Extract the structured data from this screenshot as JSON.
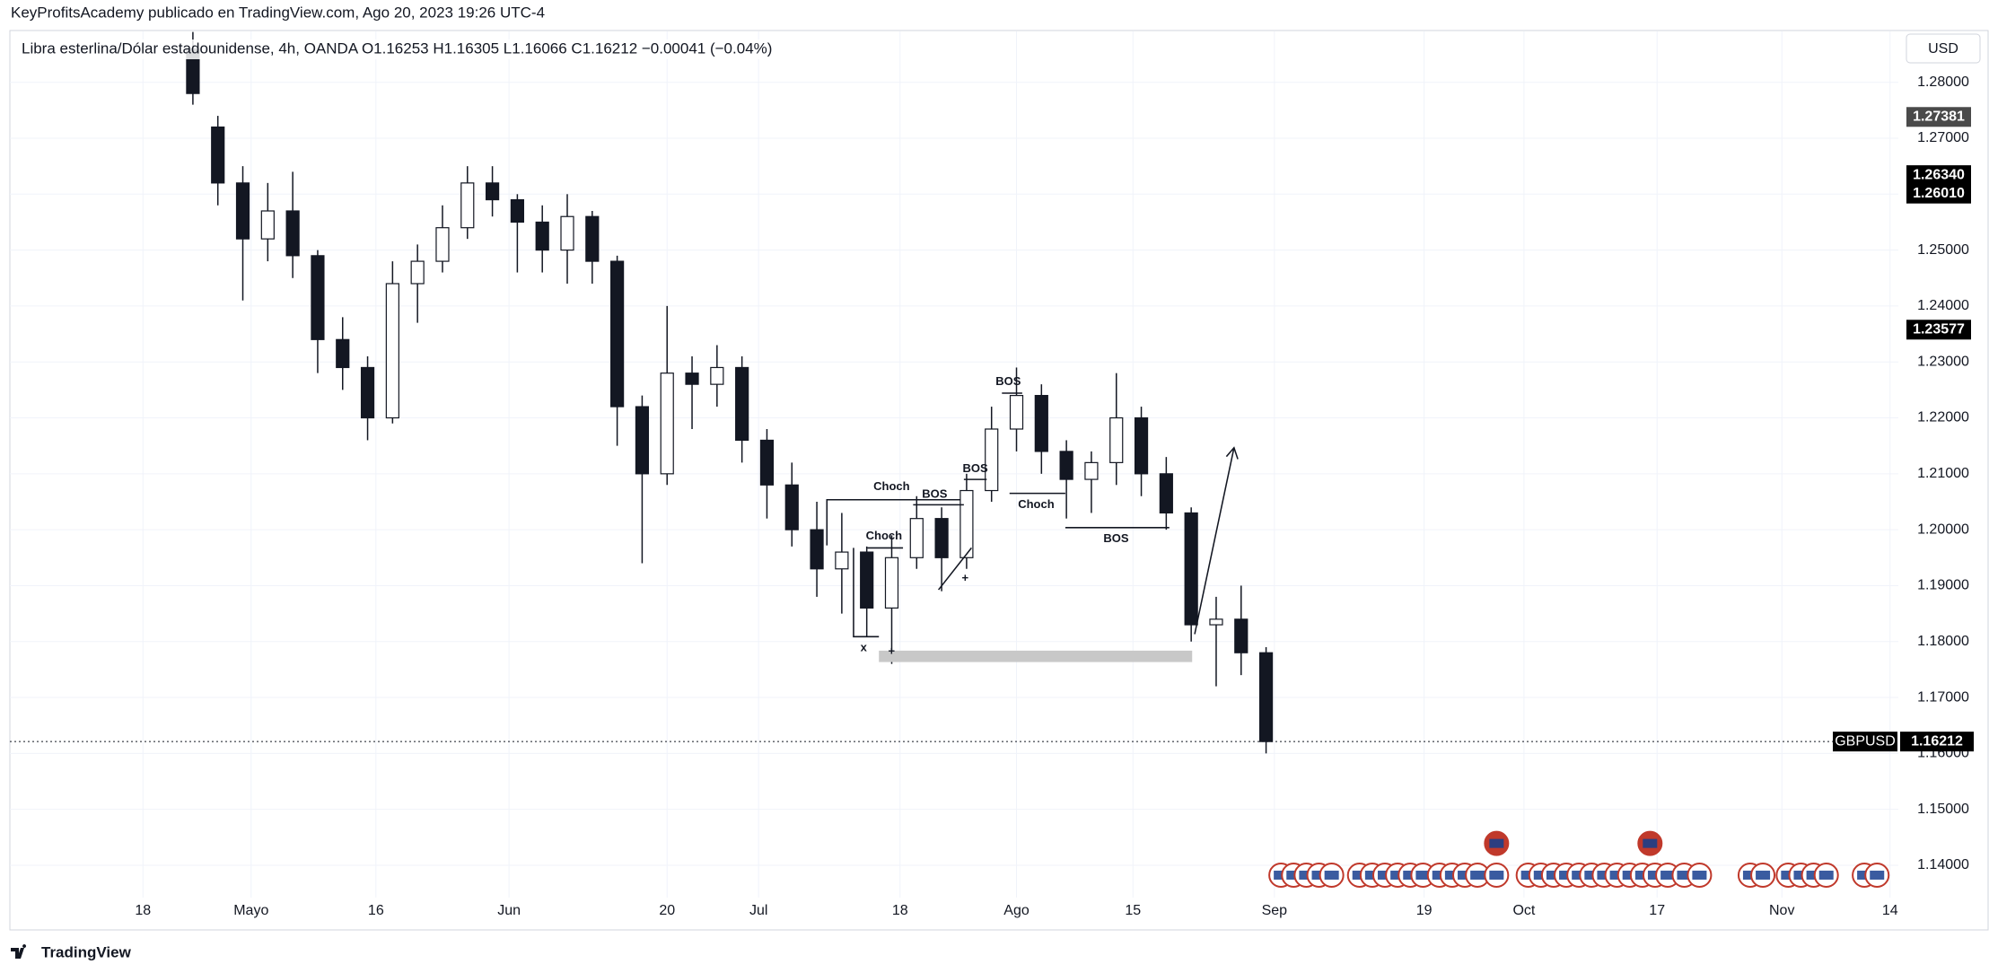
{
  "header": {
    "byline": "KeyProfitsAcademy publicado en TradingView.com, Ago 20, 2023 19:26 UTC-4"
  },
  "footer": {
    "brand": "TradingView"
  },
  "currency_button": "USD",
  "chart_data": {
    "type": "candlestick",
    "legend": "Libra esterlina/Dólar estadounidense, 4h, OANDA  O1.16253  H1.16305  L1.16066  C1.16212  −0.00041 (−0.04%)",
    "x": [
      "2023-04-24",
      "2023-04-27",
      "2023-04-30",
      "2023-05-03",
      "2023-05-06",
      "2023-05-09",
      "2023-05-12",
      "2023-05-15",
      "2023-05-18",
      "2023-05-21",
      "2023-05-24",
      "2023-05-27",
      "2023-05-30",
      "2023-06-02",
      "2023-06-05",
      "2023-06-08",
      "2023-06-11",
      "2023-06-14",
      "2023-06-17",
      "2023-06-20",
      "2023-06-23",
      "2023-06-26",
      "2023-06-29",
      "2023-07-02",
      "2023-07-05",
      "2023-07-08",
      "2023-07-11",
      "2023-07-14",
      "2023-07-17",
      "2023-07-20",
      "2023-07-23",
      "2023-07-26",
      "2023-07-29",
      "2023-08-01",
      "2023-08-04",
      "2023-08-07",
      "2023-08-10",
      "2023-08-13",
      "2023-08-16",
      "2023-08-19",
      "2023-08-22",
      "2023-08-25",
      "2023-08-28",
      "2023-08-31"
    ],
    "open": [
      1.286,
      1.272,
      1.262,
      1.252,
      1.257,
      1.249,
      1.234,
      1.229,
      1.22,
      1.244,
      1.248,
      1.254,
      1.262,
      1.259,
      1.255,
      1.25,
      1.256,
      1.248,
      1.222,
      1.21,
      1.228,
      1.226,
      1.229,
      1.216,
      1.208,
      1.2,
      1.193,
      1.196,
      1.186,
      1.195,
      1.202,
      1.195,
      1.207,
      1.218,
      1.224,
      1.214,
      1.209,
      1.212,
      1.22,
      1.21,
      1.203,
      1.183,
      1.184,
      1.178
    ],
    "high": [
      1.289,
      1.274,
      1.265,
      1.262,
      1.264,
      1.25,
      1.238,
      1.231,
      1.248,
      1.251,
      1.258,
      1.265,
      1.265,
      1.26,
      1.258,
      1.26,
      1.257,
      1.249,
      1.224,
      1.24,
      1.231,
      1.233,
      1.231,
      1.218,
      1.212,
      1.205,
      1.203,
      1.197,
      1.199,
      1.206,
      1.204,
      1.21,
      1.222,
      1.229,
      1.226,
      1.216,
      1.214,
      1.228,
      1.222,
      1.213,
      1.204,
      1.188,
      1.19,
      1.179
    ],
    "low": [
      1.276,
      1.258,
      1.241,
      1.248,
      1.245,
      1.228,
      1.225,
      1.216,
      1.219,
      1.237,
      1.246,
      1.252,
      1.256,
      1.246,
      1.246,
      1.244,
      1.244,
      1.215,
      1.194,
      1.208,
      1.218,
      1.222,
      1.212,
      1.202,
      1.197,
      1.188,
      1.185,
      1.181,
      1.176,
      1.193,
      1.189,
      1.193,
      1.205,
      1.214,
      1.21,
      1.202,
      1.203,
      1.208,
      1.206,
      1.2,
      1.18,
      1.172,
      1.174,
      1.16
    ],
    "close": [
      1.278,
      1.262,
      1.252,
      1.257,
      1.249,
      1.234,
      1.229,
      1.22,
      1.244,
      1.248,
      1.254,
      1.262,
      1.259,
      1.255,
      1.25,
      1.256,
      1.248,
      1.222,
      1.21,
      1.228,
      1.226,
      1.229,
      1.216,
      1.208,
      1.2,
      1.193,
      1.196,
      1.186,
      1.195,
      1.202,
      1.195,
      1.207,
      1.218,
      1.224,
      1.214,
      1.209,
      1.212,
      1.22,
      1.21,
      1.203,
      1.183,
      1.184,
      1.178,
      1.16212
    ],
    "up_color": "#ffffff",
    "down_color": "#131722",
    "wick_color": "#131722",
    "xlim": [
      "2023-04-02",
      "2023-11-15"
    ],
    "xticks": [
      {
        "value": "2023-04-18",
        "label": "18"
      },
      {
        "value": "2023-05-01",
        "label": "Mayo"
      },
      {
        "value": "2023-05-16",
        "label": "16"
      },
      {
        "value": "2023-06-01",
        "label": "Jun"
      },
      {
        "value": "2023-06-20",
        "label": "20"
      },
      {
        "value": "2023-07-01",
        "label": "Jul"
      },
      {
        "value": "2023-07-18",
        "label": "18"
      },
      {
        "value": "2023-08-01",
        "label": "Ago"
      },
      {
        "value": "2023-08-15",
        "label": "15"
      },
      {
        "value": "2023-09-01",
        "label": "Sep"
      },
      {
        "value": "2023-09-19",
        "label": "19"
      },
      {
        "value": "2023-10-01",
        "label": "Oct"
      },
      {
        "value": "2023-10-17",
        "label": "17"
      },
      {
        "value": "2023-11-01",
        "label": "Nov"
      },
      {
        "value": "2023-11-14",
        "label": "14"
      }
    ],
    "ylim": [
      1.1286,
      1.2891
    ],
    "yticks": [
      {
        "value": 1.14,
        "label": "1.14000"
      },
      {
        "value": 1.15,
        "label": "1.15000"
      },
      {
        "value": 1.16,
        "label": "1.16000"
      },
      {
        "value": 1.17,
        "label": "1.17000"
      },
      {
        "value": 1.18,
        "label": "1.18000"
      },
      {
        "value": 1.19,
        "label": "1.19000"
      },
      {
        "value": 1.2,
        "label": "1.20000"
      },
      {
        "value": 1.21,
        "label": "1.21000"
      },
      {
        "value": 1.22,
        "label": "1.22000"
      },
      {
        "value": 1.23,
        "label": "1.23000"
      },
      {
        "value": 1.24,
        "label": "1.24000"
      },
      {
        "value": 1.25,
        "label": "1.25000"
      },
      {
        "value": 1.26,
        "label": "1.26000"
      },
      {
        "value": 1.27,
        "label": "1.27000"
      },
      {
        "value": 1.28,
        "label": "1.28000"
      }
    ],
    "grid": true,
    "price_labels": [
      {
        "value": 1.27381,
        "label": "1.27381",
        "color": "#4a4a4a"
      },
      {
        "value": 1.2634,
        "label": "1.26340",
        "color": "#000000"
      },
      {
        "value": 1.2601,
        "label": "1.26010",
        "color": "#000000"
      },
      {
        "value": 1.23577,
        "label": "1.23577",
        "color": "#000000"
      }
    ],
    "symbol": "GBPUSD",
    "last_price": {
      "value": 1.16212,
      "label": "1.16212"
    },
    "annotations": [
      "Choch",
      "Choch",
      "BOS",
      "BOS",
      "BOS",
      "Choch",
      "BOS",
      "x",
      "+",
      "+"
    ]
  }
}
